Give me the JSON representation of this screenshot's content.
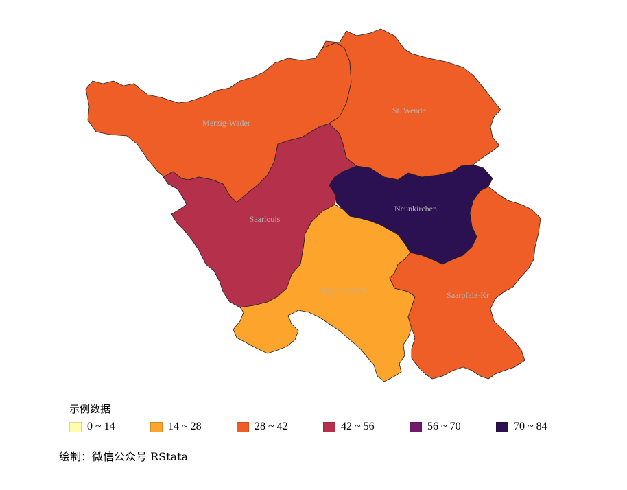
{
  "map": {
    "regions": [
      {
        "name": "Merzig-Wader",
        "value_bin": "28 ~ 42",
        "fill": "#f05e28"
      },
      {
        "name": "St. Wendel",
        "value_bin": "28 ~ 42",
        "fill": "#f05e28"
      },
      {
        "name": "Saarlouis",
        "value_bin": "42 ~ 56",
        "fill": "#b5304b"
      },
      {
        "name": "Neunkirchen",
        "value_bin": "70 ~ 84",
        "fill": "#2c1152"
      },
      {
        "name": "Regionalverb",
        "value_bin": "14 ~ 28",
        "fill": "#fca42c"
      },
      {
        "name": "Saarpfalz-Kr",
        "value_bin": "28 ~ 42",
        "fill": "#f05e28"
      }
    ]
  },
  "legend": {
    "title": "示例数据",
    "items": [
      {
        "label": "0 ~ 14",
        "color": "#fffcaa"
      },
      {
        "label": "14 ~ 28",
        "color": "#fca42c"
      },
      {
        "label": "28 ~ 42",
        "color": "#f05e28"
      },
      {
        "label": "42 ~ 56",
        "color": "#b5304b"
      },
      {
        "label": "56 ~ 70",
        "color": "#711a6d"
      },
      {
        "label": "70 ~ 84",
        "color": "#2c1152"
      }
    ]
  },
  "caption": "绘制：微信公众号 RStata"
}
